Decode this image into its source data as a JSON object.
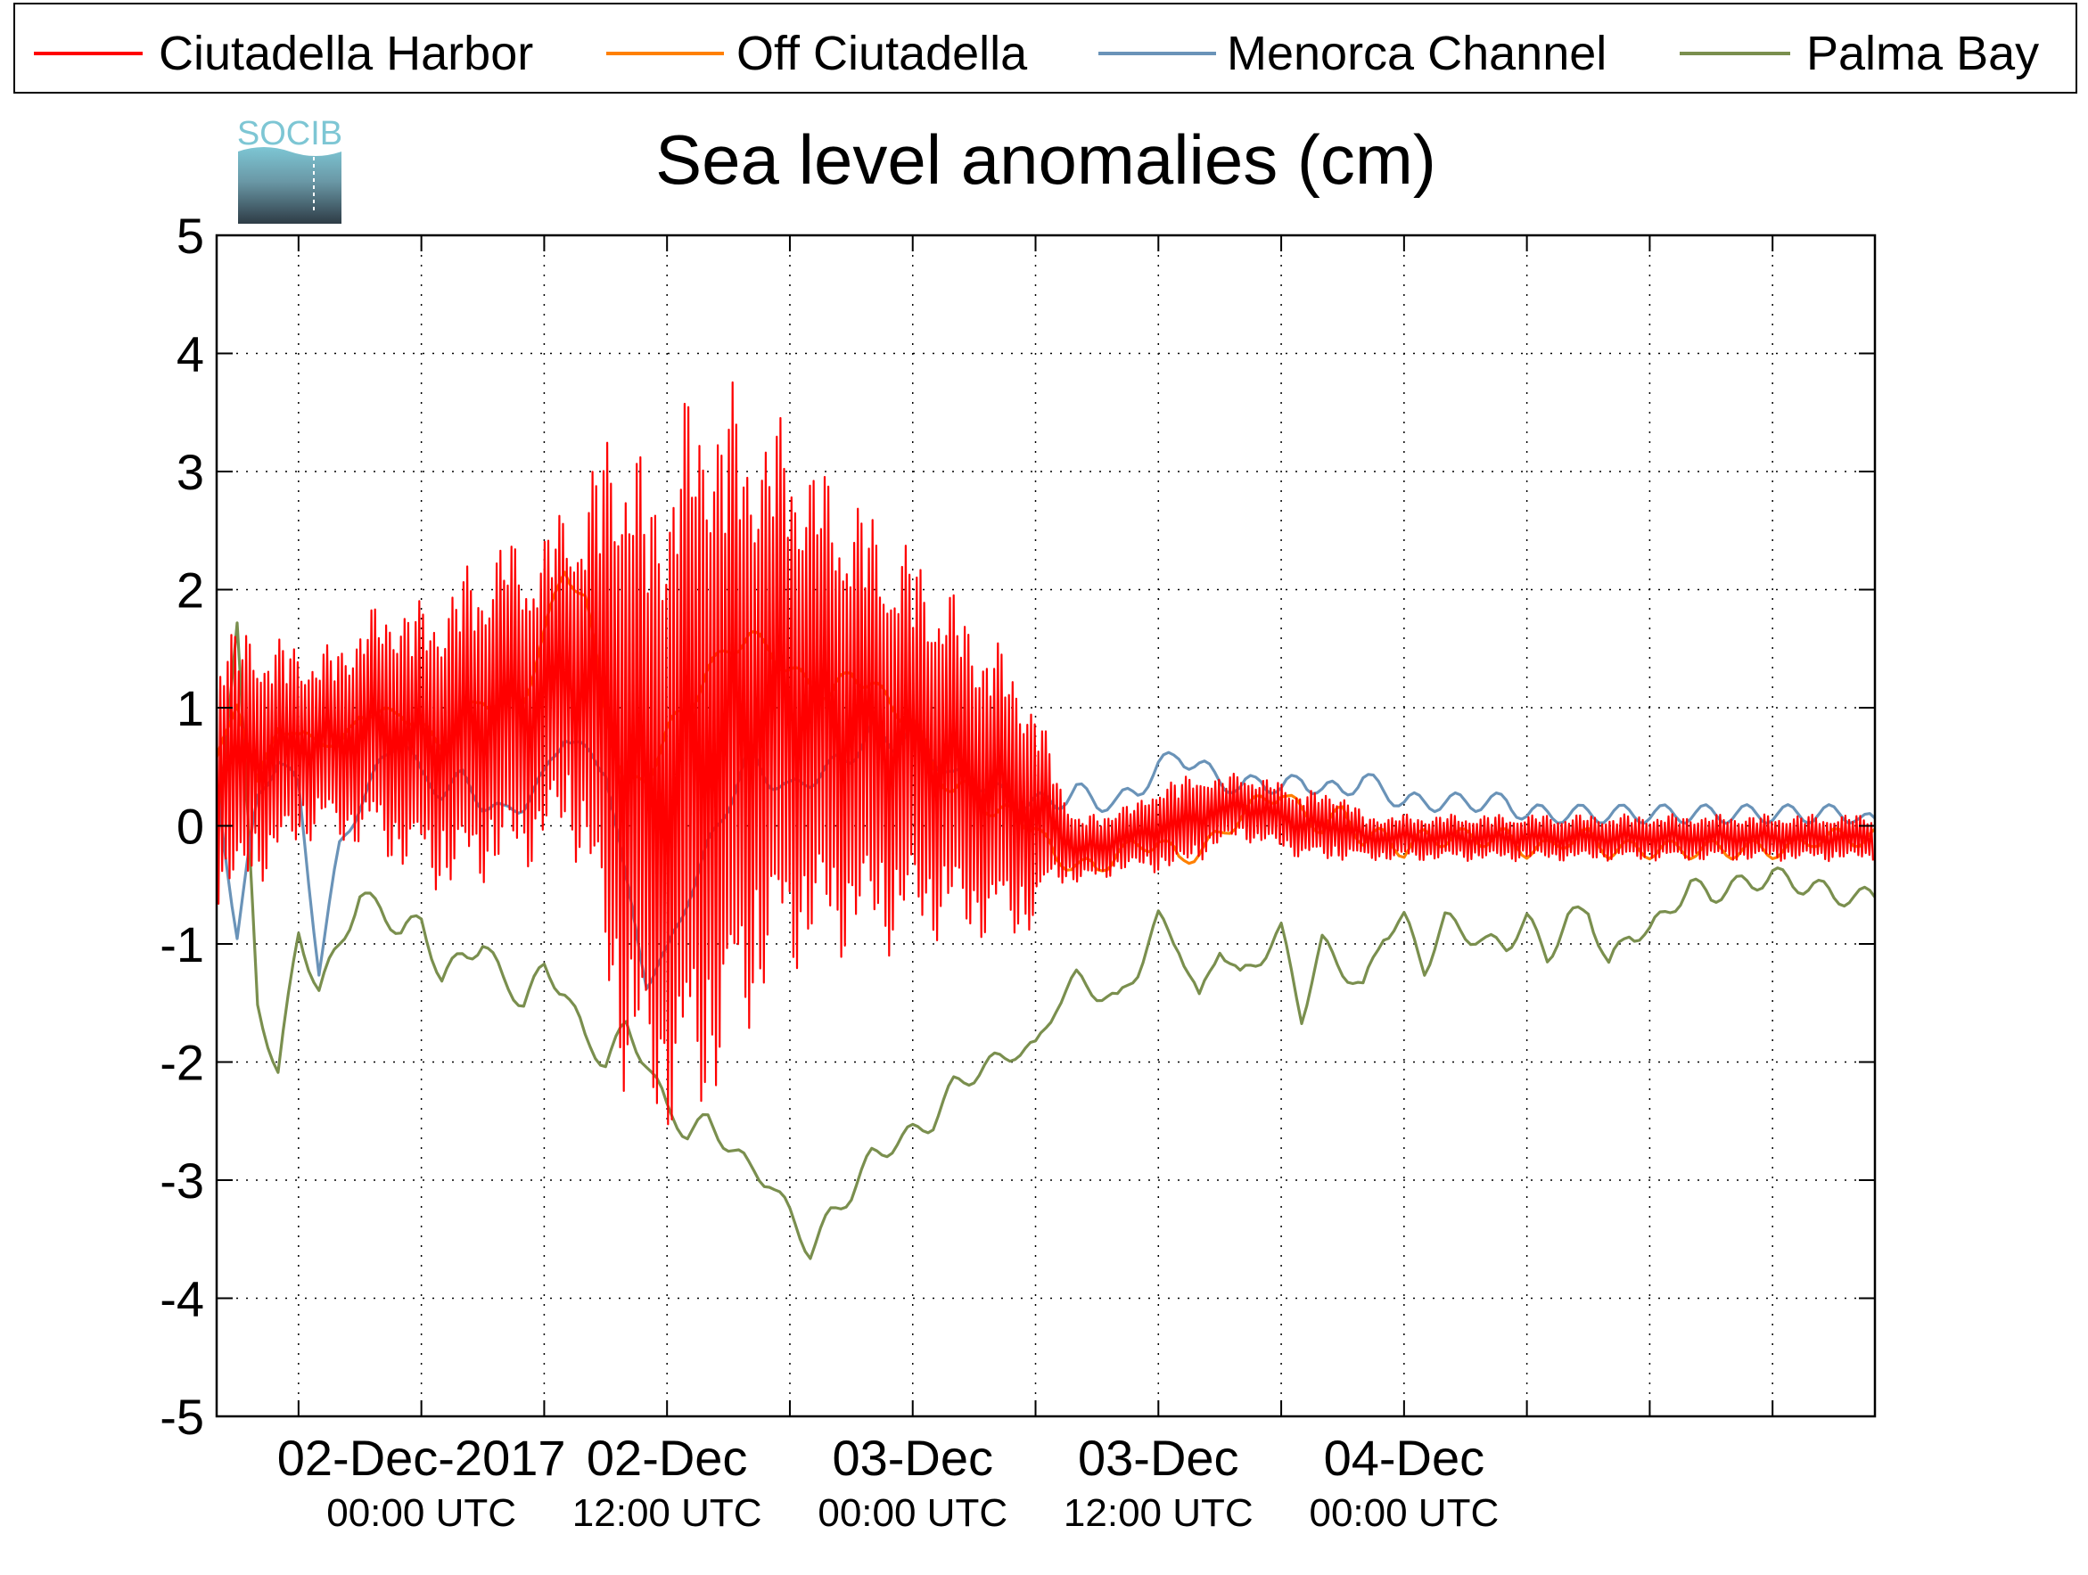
{
  "chart_data": {
    "type": "line",
    "title": "Sea level anomalies (cm)",
    "logo_text": "SOCIB",
    "xlabel": "",
    "ylabel": "",
    "ylim": [
      -5,
      5
    ],
    "yticks": [
      5,
      4,
      3,
      2,
      1,
      0,
      -1,
      -2,
      -3,
      -4,
      -5
    ],
    "xlim_hours": [
      -10,
      71
    ],
    "grid": true,
    "legend_position": "top",
    "x_tick_labels": [
      {
        "hour": 0,
        "date": "02-Dec-2017",
        "time": "00:00 UTC"
      },
      {
        "hour": 12,
        "date": "02-Dec",
        "time": "12:00 UTC"
      },
      {
        "hour": 24,
        "date": "03-Dec",
        "time": "00:00 UTC"
      },
      {
        "hour": 36,
        "date": "03-Dec",
        "time": "12:00 UTC"
      },
      {
        "hour": 48,
        "date": "04-Dec",
        "time": "00:00 UTC"
      }
    ],
    "series": [
      {
        "name": "Ciutadella Harbor",
        "color": "#ff0000",
        "x": [
          -10,
          -9,
          -8,
          -7,
          -6,
          -5,
          -4,
          -3,
          -2,
          -1,
          0,
          1,
          2,
          3,
          4,
          5,
          6,
          7,
          8,
          9,
          10,
          11,
          12,
          13,
          14,
          15,
          16,
          17,
          18,
          19,
          20,
          21,
          22,
          23,
          24,
          25,
          26,
          27,
          28,
          29,
          30,
          31,
          32,
          33,
          34,
          35,
          36,
          37,
          38,
          39,
          40,
          41,
          42,
          43,
          44,
          45,
          46,
          47,
          48,
          49,
          50,
          51,
          52,
          53,
          54,
          55,
          56,
          57,
          58,
          59,
          60,
          61,
          62,
          63,
          64,
          65,
          66,
          67,
          68,
          69,
          70,
          71
        ],
        "y_mean": [
          0.5,
          0.5,
          0.6,
          0.6,
          0.7,
          0.7,
          0.7,
          0.8,
          0.8,
          0.8,
          0.7,
          0.7,
          0.8,
          0.9,
          1.0,
          1.0,
          1.1,
          1.3,
          1.2,
          1.0,
          0.6,
          0.2,
          0.3,
          0.5,
          0.7,
          0.8,
          0.9,
          1.0,
          1.1,
          1.0,
          0.9,
          0.9,
          0.8,
          0.7,
          0.7,
          0.6,
          0.5,
          0.4,
          0.3,
          0.2,
          0.1,
          0.0,
          -0.2,
          -0.2,
          -0.1,
          -0.1,
          0.0,
          0.0,
          0.1,
          0.1,
          0.2,
          0.1,
          0.1,
          0.0,
          0.0,
          0.0,
          -0.1,
          -0.1,
          -0.1,
          -0.1,
          -0.1,
          -0.1,
          -0.1,
          -0.1,
          -0.1,
          -0.1,
          -0.1,
          -0.1,
          -0.1,
          -0.1,
          -0.1,
          -0.1,
          -0.1,
          -0.1,
          -0.1,
          -0.1,
          -0.1,
          -0.1,
          -0.1,
          -0.1,
          -0.1,
          -0.1
        ],
        "y_amplitude": [
          1.2,
          1.2,
          1.1,
          1.0,
          0.9,
          0.8,
          0.9,
          1.0,
          1.1,
          1.2,
          1.2,
          1.3,
          1.4,
          1.4,
          1.5,
          1.4,
          1.4,
          1.5,
          1.6,
          2.5,
          3.0,
          2.8,
          3.0,
          3.2,
          3.2,
          3.0,
          2.7,
          2.5,
          2.4,
          2.2,
          2.1,
          2.0,
          1.9,
          1.8,
          1.7,
          1.6,
          1.5,
          1.4,
          1.3,
          1.2,
          1.0,
          0.5,
          0.3,
          0.3,
          0.3,
          0.3,
          0.4,
          0.4,
          0.4,
          0.3,
          0.3,
          0.3,
          0.3,
          0.3,
          0.3,
          0.3,
          0.2,
          0.2,
          0.2,
          0.2,
          0.2,
          0.2,
          0.2,
          0.2,
          0.2,
          0.2,
          0.2,
          0.2,
          0.2,
          0.2,
          0.2,
          0.2,
          0.2,
          0.2,
          0.2,
          0.2,
          0.2,
          0.2,
          0.2,
          0.2,
          0.2,
          0.2
        ],
        "period_hours": 0.18
      },
      {
        "name": "Off Ciutadella",
        "color": "#ff8000",
        "x": [
          -10,
          -9,
          -8,
          -7,
          -6,
          -5,
          -4,
          -3,
          -2,
          -1,
          0,
          1,
          2,
          3,
          4,
          5,
          6,
          7,
          8,
          9,
          10,
          11,
          12,
          13,
          14,
          15,
          16,
          17,
          18,
          19,
          20,
          21,
          22,
          23,
          24,
          25,
          26,
          27,
          28,
          29,
          30,
          31,
          32,
          33,
          34,
          35,
          36,
          37,
          38,
          39,
          40,
          41,
          42,
          43,
          44,
          45,
          46,
          47,
          48,
          49,
          50,
          51,
          52,
          53,
          54,
          55,
          56,
          57,
          58,
          59,
          60,
          61,
          62,
          63,
          64,
          65,
          66,
          67,
          68,
          69,
          70,
          71
        ],
        "y": [
          0.5,
          1.1,
          0.3,
          0.9,
          0.7,
          0.8,
          0.6,
          1.0,
          0.9,
          1.0,
          0.8,
          0.7,
          0.9,
          1.1,
          1.0,
          1.1,
          1.6,
          2.2,
          1.9,
          1.0,
          0.3,
          0.4,
          0.8,
          1.0,
          1.3,
          1.5,
          1.6,
          1.5,
          1.3,
          1.2,
          1.1,
          1.3,
          1.2,
          1.0,
          0.9,
          0.5,
          0.3,
          0.3,
          0.1,
          0.1,
          0.0,
          -0.3,
          -0.3,
          -0.4,
          -0.2,
          -0.2,
          -0.1,
          -0.3,
          -0.2,
          -0.1,
          0.1,
          0.2,
          0.3,
          0.1,
          0.0,
          0.1,
          -0.1,
          -0.1,
          -0.2,
          -0.1,
          -0.1,
          -0.1,
          -0.1,
          -0.1,
          -0.2,
          -0.2,
          -0.1,
          -0.1,
          -0.2,
          -0.2,
          -0.2,
          -0.2,
          -0.2,
          -0.2,
          -0.2,
          -0.2,
          -0.2,
          -0.2,
          -0.1,
          -0.1,
          -0.1,
          -0.1
        ]
      },
      {
        "name": "Menorca Channel",
        "color": "#6a93b8",
        "x": [
          -10,
          -9,
          -8,
          -7,
          -6,
          -5,
          -4,
          -3,
          -2,
          -1,
          0,
          1,
          2,
          3,
          4,
          5,
          6,
          7,
          8,
          9,
          10,
          11,
          12,
          13,
          14,
          15,
          16,
          17,
          18,
          19,
          20,
          21,
          22,
          23,
          24,
          25,
          26,
          27,
          28,
          29,
          30,
          31,
          32,
          33,
          34,
          35,
          36,
          37,
          38,
          39,
          40,
          41,
          42,
          43,
          44,
          45,
          46,
          47,
          48,
          49,
          50,
          51,
          52,
          53,
          54,
          55,
          56,
          57,
          58,
          59,
          60,
          61,
          62,
          63,
          64,
          65,
          66,
          67,
          68,
          69,
          70,
          71
        ],
        "y": [
          0.3,
          -0.9,
          0.2,
          0.6,
          0.3,
          -1.2,
          -0.2,
          0.2,
          0.5,
          0.8,
          0.4,
          0.3,
          0.4,
          0.2,
          0.1,
          0.2,
          0.4,
          0.8,
          0.6,
          0.5,
          -0.5,
          -1.3,
          -1.1,
          -0.6,
          -0.2,
          0.2,
          0.6,
          0.4,
          0.3,
          0.4,
          0.5,
          0.6,
          0.8,
          0.7,
          0.8,
          0.6,
          0.4,
          0.4,
          0.3,
          0.2,
          0.2,
          0.2,
          0.3,
          0.2,
          0.2,
          0.3,
          0.5,
          0.6,
          0.5,
          0.4,
          0.3,
          0.4,
          0.3,
          0.4,
          0.3,
          0.3,
          0.4,
          0.3,
          0.2,
          0.2,
          0.2,
          0.2,
          0.2,
          0.2,
          0.1,
          0.1,
          0.1,
          0.1,
          0.1,
          0.1,
          0.1,
          0.1,
          0.1,
          0.1,
          0.1,
          0.1,
          0.1,
          0.1,
          0.1,
          0.1,
          0.1,
          0.0
        ]
      },
      {
        "name": "Palma Bay",
        "color": "#7a8f4e",
        "x": [
          -10,
          -9,
          -8,
          -7,
          -6,
          -5,
          -4,
          -3,
          -2,
          -1,
          0,
          1,
          2,
          3,
          4,
          5,
          6,
          7,
          8,
          9,
          10,
          11,
          12,
          13,
          14,
          15,
          16,
          17,
          18,
          19,
          20,
          21,
          22,
          23,
          24,
          25,
          26,
          27,
          28,
          29,
          30,
          31,
          32,
          33,
          34,
          35,
          36,
          37,
          38,
          39,
          40,
          41,
          42,
          43,
          44,
          45,
          46,
          47,
          48,
          49,
          50,
          51,
          52,
          53,
          54,
          55,
          56,
          57,
          58,
          59,
          60,
          61,
          62,
          63,
          64,
          65,
          66,
          67,
          68,
          69,
          70,
          71
        ],
        "y": [
          0.0,
          1.7,
          -1.5,
          -2.1,
          -0.9,
          -1.4,
          -1.0,
          -0.6,
          -0.7,
          -0.9,
          -0.8,
          -1.3,
          -1.1,
          -1.0,
          -1.3,
          -1.5,
          -1.2,
          -1.4,
          -1.8,
          -2.0,
          -1.7,
          -2.0,
          -2.4,
          -2.6,
          -2.5,
          -2.7,
          -2.9,
          -3.0,
          -3.3,
          -3.6,
          -3.3,
          -3.1,
          -2.8,
          -2.7,
          -2.6,
          -2.5,
          -2.2,
          -2.1,
          -2.0,
          -1.9,
          -1.9,
          -1.5,
          -1.3,
          -1.4,
          -1.5,
          -1.2,
          -0.8,
          -1.0,
          -1.5,
          -1.0,
          -1.3,
          -1.1,
          -0.9,
          -1.6,
          -1.0,
          -1.2,
          -1.4,
          -0.9,
          -0.8,
          -1.2,
          -0.8,
          -0.9,
          -1.0,
          -1.0,
          -0.8,
          -1.1,
          -0.8,
          -0.7,
          -1.2,
          -0.9,
          -0.9,
          -0.7,
          -0.5,
          -0.6,
          -0.5,
          -0.5,
          -0.4,
          -0.5,
          -0.5,
          -0.6,
          -0.6,
          -0.6
        ]
      }
    ]
  }
}
